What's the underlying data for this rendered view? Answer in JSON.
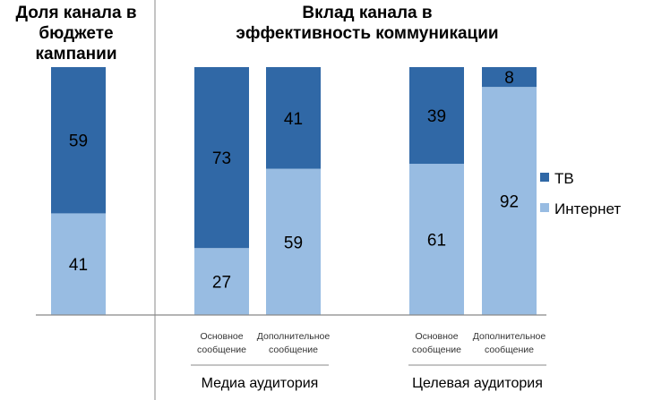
{
  "chart_data": [
    {
      "type": "bar",
      "stacked": true,
      "title": "Доля канала в бюджете кампании",
      "categories": [
        ""
      ],
      "series": [
        {
          "name": "ТВ",
          "values": [
            59
          ]
        },
        {
          "name": "Интернет",
          "values": [
            41
          ]
        }
      ],
      "ylim": [
        0,
        100
      ],
      "grid": false
    },
    {
      "type": "bar",
      "stacked": true,
      "title": "Вклад канала в эффективность коммуникации",
      "categories": [
        "Основное сообщение",
        "Дополнительное сообщение",
        "Основное сообщение",
        "Дополнительное сообщение"
      ],
      "groups": [
        {
          "label": "Медиа аудитория",
          "categories": [
            0,
            1
          ]
        },
        {
          "label": "Целевая аудитория",
          "categories": [
            2,
            3
          ]
        }
      ],
      "series": [
        {
          "name": "ТВ",
          "values": [
            73,
            41,
            39,
            8
          ]
        },
        {
          "name": "Интернет",
          "values": [
            27,
            59,
            61,
            92
          ]
        }
      ],
      "ylim": [
        0,
        100
      ],
      "grid": false,
      "legend": "right"
    }
  ],
  "colors": {
    "tv": "#3068A6",
    "internet": "#98BCE2"
  },
  "titles": {
    "left_line1": "Доля канала в",
    "left_line2": "бюджете кампании",
    "right_line1": "Вклад канала в",
    "right_line2": "эффективность коммуникации"
  }
}
